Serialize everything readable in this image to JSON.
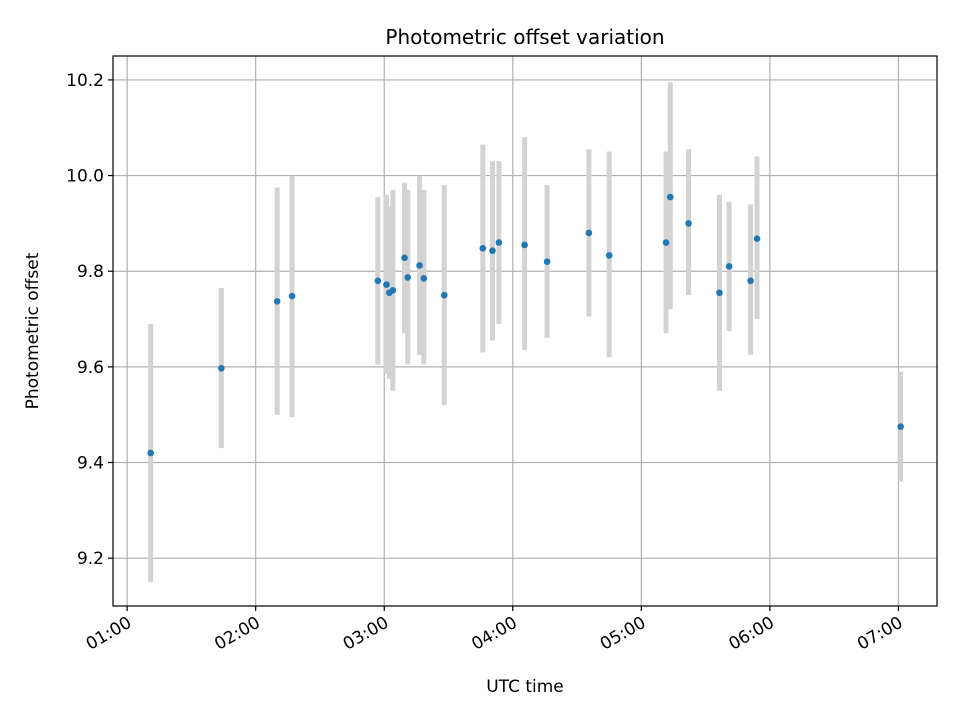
{
  "chart_data": {
    "type": "scatter",
    "title": "Photometric offset variation",
    "xlabel": "UTC time",
    "ylabel": "Photometric offset",
    "x_unit": "hours UTC",
    "xlim": [
      0.89,
      7.3
    ],
    "ylim": [
      9.1,
      10.25
    ],
    "x_ticks": [
      1,
      2,
      3,
      4,
      5,
      6,
      7
    ],
    "x_tick_labels": [
      "01:00",
      "02:00",
      "03:00",
      "04:00",
      "05:00",
      "06:00",
      "07:00"
    ],
    "y_ticks": [
      9.2,
      9.4,
      9.6,
      9.8,
      10.0,
      10.2
    ],
    "y_tick_labels": [
      "9.2",
      "9.4",
      "9.6",
      "9.8",
      "10.0",
      "10.2"
    ],
    "grid": true,
    "point_color": "#1f77b4",
    "errorbar_color": "#d3d3d3",
    "points": [
      {
        "x": 1.183,
        "y": 9.42,
        "ylo": 9.15,
        "yhi": 9.69
      },
      {
        "x": 1.733,
        "y": 9.597,
        "ylo": 9.43,
        "yhi": 9.765
      },
      {
        "x": 2.167,
        "y": 9.737,
        "ylo": 9.5,
        "yhi": 9.975
      },
      {
        "x": 2.283,
        "y": 9.748,
        "ylo": 9.495,
        "yhi": 10.0
      },
      {
        "x": 2.95,
        "y": 9.78,
        "ylo": 9.605,
        "yhi": 9.955
      },
      {
        "x": 3.017,
        "y": 9.772,
        "ylo": 9.585,
        "yhi": 9.96
      },
      {
        "x": 3.04,
        "y": 9.755,
        "ylo": 9.575,
        "yhi": 9.935
      },
      {
        "x": 3.067,
        "y": 9.76,
        "ylo": 9.55,
        "yhi": 9.97
      },
      {
        "x": 3.158,
        "y": 9.828,
        "ylo": 9.67,
        "yhi": 9.985
      },
      {
        "x": 3.183,
        "y": 9.787,
        "ylo": 9.605,
        "yhi": 9.97
      },
      {
        "x": 3.275,
        "y": 9.812,
        "ylo": 9.625,
        "yhi": 10.0
      },
      {
        "x": 3.308,
        "y": 9.785,
        "ylo": 9.605,
        "yhi": 9.97
      },
      {
        "x": 3.467,
        "y": 9.75,
        "ylo": 9.52,
        "yhi": 9.98
      },
      {
        "x": 3.767,
        "y": 9.848,
        "ylo": 9.63,
        "yhi": 10.065
      },
      {
        "x": 3.842,
        "y": 9.843,
        "ylo": 9.655,
        "yhi": 10.03
      },
      {
        "x": 3.892,
        "y": 9.86,
        "ylo": 9.69,
        "yhi": 10.03
      },
      {
        "x": 4.092,
        "y": 9.855,
        "ylo": 9.635,
        "yhi": 10.08
      },
      {
        "x": 4.267,
        "y": 9.82,
        "ylo": 9.66,
        "yhi": 9.98
      },
      {
        "x": 4.592,
        "y": 9.88,
        "ylo": 9.705,
        "yhi": 10.055
      },
      {
        "x": 4.75,
        "y": 9.833,
        "ylo": 9.62,
        "yhi": 10.05
      },
      {
        "x": 5.192,
        "y": 9.86,
        "ylo": 9.67,
        "yhi": 10.05
      },
      {
        "x": 5.225,
        "y": 9.955,
        "ylo": 9.72,
        "yhi": 10.195
      },
      {
        "x": 5.367,
        "y": 9.9,
        "ylo": 9.75,
        "yhi": 10.055
      },
      {
        "x": 5.608,
        "y": 9.755,
        "ylo": 9.55,
        "yhi": 9.96
      },
      {
        "x": 5.683,
        "y": 9.81,
        "ylo": 9.675,
        "yhi": 9.945
      },
      {
        "x": 5.85,
        "y": 9.78,
        "ylo": 9.625,
        "yhi": 9.94
      },
      {
        "x": 5.9,
        "y": 9.868,
        "ylo": 9.7,
        "yhi": 10.04
      },
      {
        "x": 7.017,
        "y": 9.475,
        "ylo": 9.36,
        "yhi": 9.59
      }
    ]
  }
}
